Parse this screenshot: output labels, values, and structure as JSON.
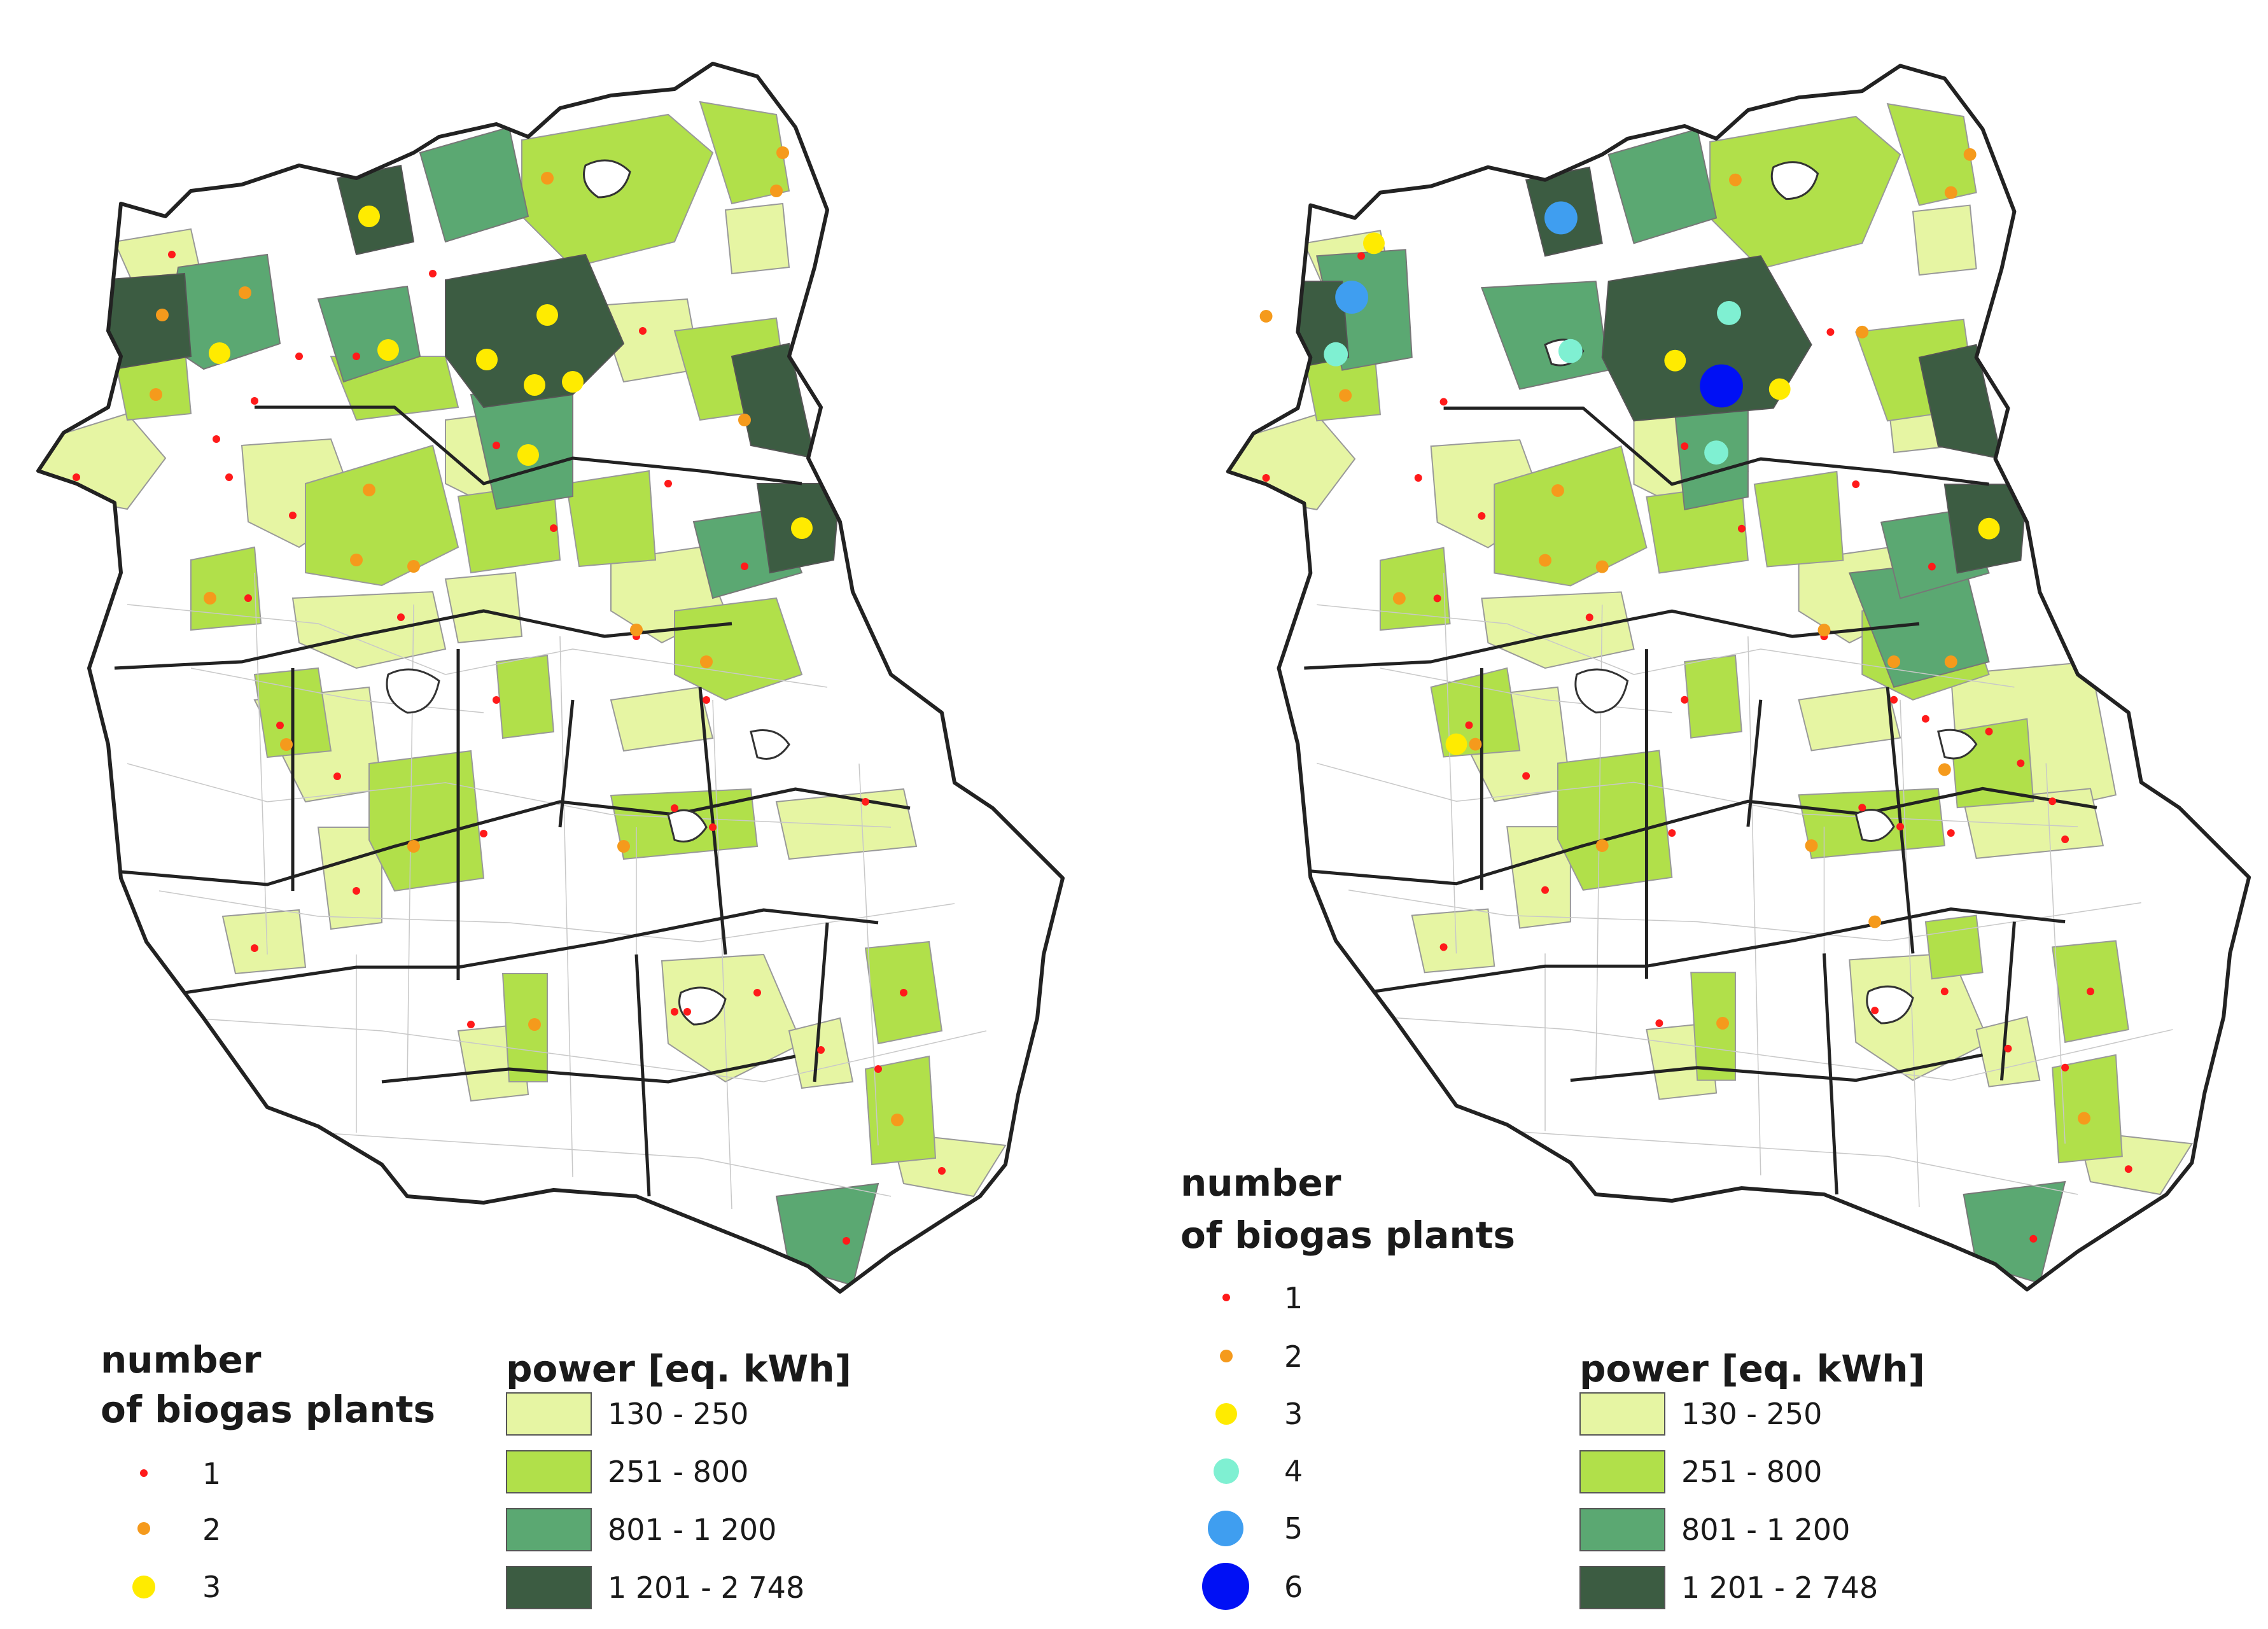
{
  "colors": {
    "class_1": "#e6f5a3",
    "class_2": "#b1e04a",
    "class_3": "#5ba872",
    "class_4": "#3c5c42",
    "dot_1": "#ff1a1a",
    "dot_2": "#f59a1c",
    "dot_3": "#ffeb00",
    "dot_4": "#7ff0d2",
    "dot_5": "#3f9ef0",
    "dot_6": "#0010f5"
  },
  "left_map": {
    "count_legend": {
      "title_line1": "number",
      "title_line2": "of biogas plants",
      "items": [
        {
          "label": "1",
          "color": "#ff1a1a"
        },
        {
          "label": "2",
          "color": "#f59a1c"
        },
        {
          "label": "3",
          "color": "#ffeb00"
        }
      ]
    },
    "power_legend": {
      "title": "power [eq. kWh]",
      "items": [
        {
          "label": "130 - 250",
          "color": "#e6f5a3"
        },
        {
          "label": "251 - 800",
          "color": "#b1e04a"
        },
        {
          "label": "801 - 1 200",
          "color": "#5ba872"
        },
        {
          "label": "1 201 - 2 748",
          "color": "#3c5c42"
        }
      ]
    }
  },
  "right_map": {
    "count_legend": {
      "title_line1": "number",
      "title_line2": "of biogas plants",
      "items": [
        {
          "label": "1",
          "color": "#ff1a1a"
        },
        {
          "label": "2",
          "color": "#f59a1c"
        },
        {
          "label": "3",
          "color": "#ffeb00"
        },
        {
          "label": "4",
          "color": "#7ff0d2"
        },
        {
          "label": "5",
          "color": "#3f9ef0"
        },
        {
          "label": "6",
          "color": "#0010f5"
        }
      ]
    },
    "power_legend": {
      "title": "power [eq. kWh]",
      "items": [
        {
          "label": "130 - 250",
          "color": "#e6f5a3"
        },
        {
          "label": "251 - 800",
          "color": "#b1e04a"
        },
        {
          "label": "801 - 1 200",
          "color": "#5ba872"
        },
        {
          "label": "1 201 - 2 748",
          "color": "#3c5c42"
        }
      ]
    }
  }
}
